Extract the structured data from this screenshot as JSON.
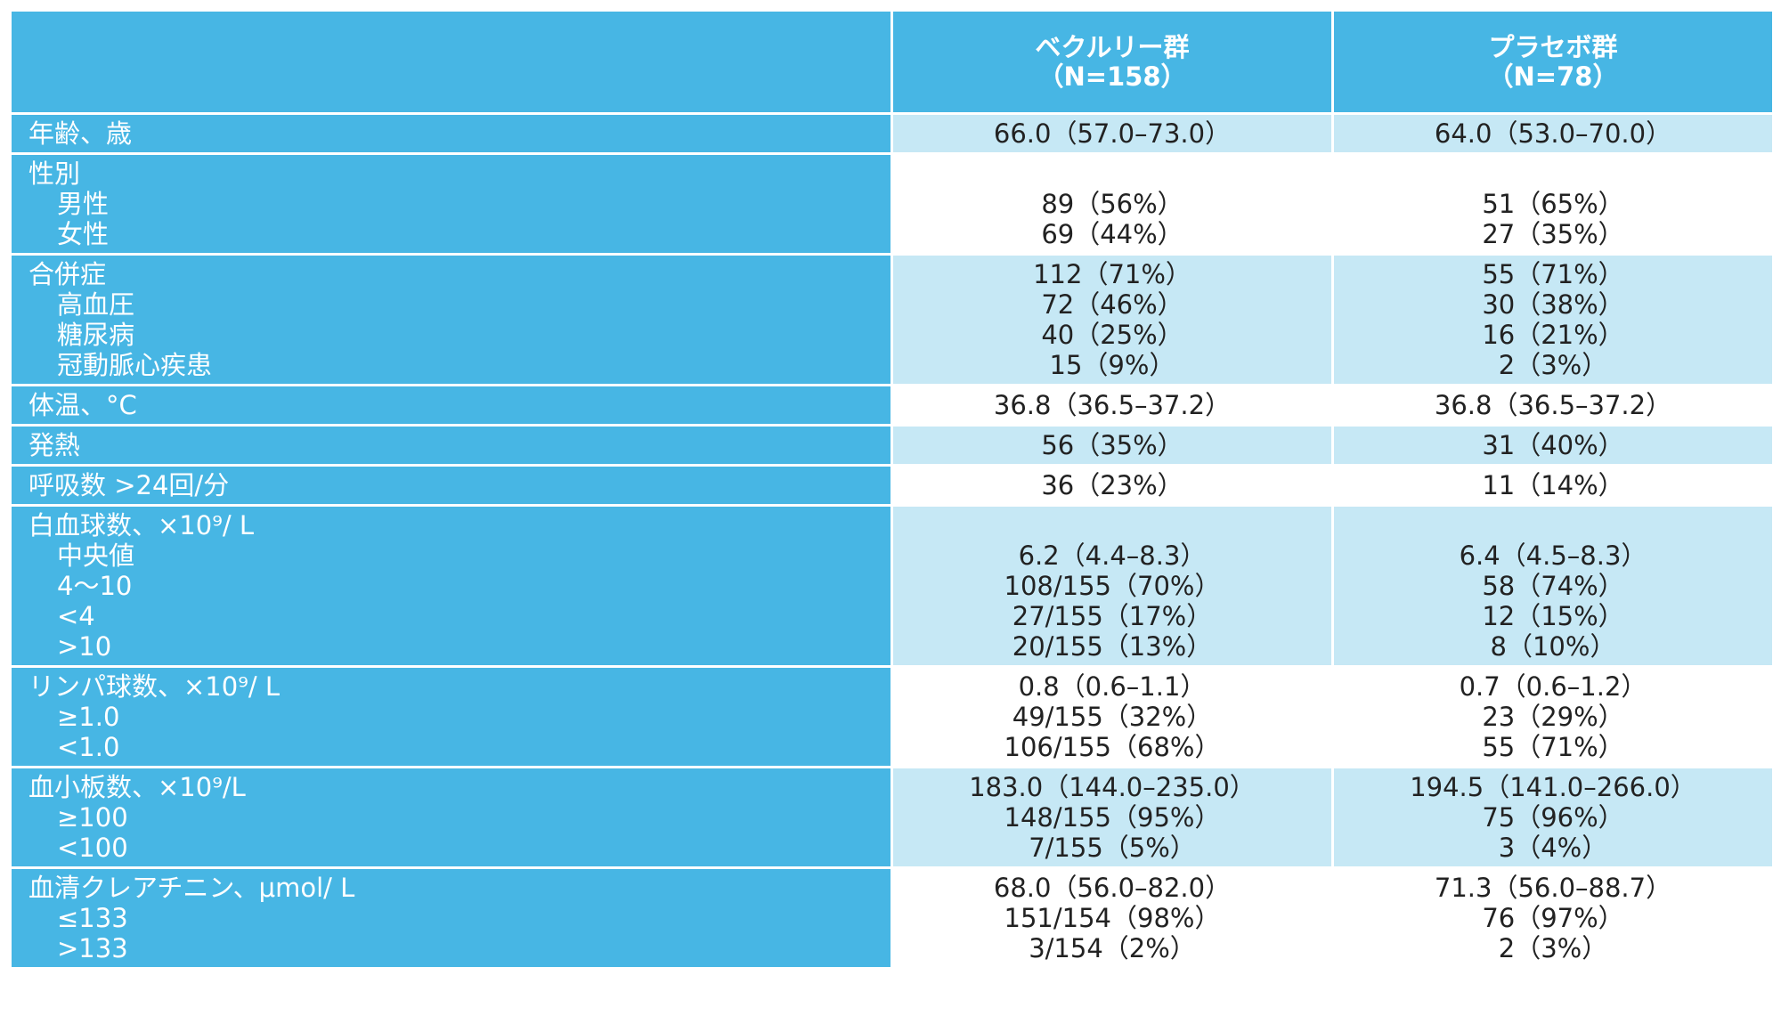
{
  "header": {
    "label": "",
    "group_a": {
      "name": "ベクルリー群",
      "n": "（N=158）"
    },
    "group_b": {
      "name": "プラセボ群",
      "n": "（N=78）"
    }
  },
  "rows": [
    {
      "shade": "light",
      "lines": [
        {
          "label": "年齢、歳",
          "indent": false,
          "a": "66.0（57.0–73.0）",
          "b": "64.0（53.0–70.0）"
        }
      ]
    },
    {
      "shade": "white",
      "lines": [
        {
          "label": "性別",
          "indent": false,
          "a": "",
          "b": ""
        },
        {
          "label": "男性",
          "indent": true,
          "a": "89（56%）",
          "b": "51（65%）"
        },
        {
          "label": "女性",
          "indent": true,
          "a": "69（44%）",
          "b": "27（35%）"
        }
      ]
    },
    {
      "shade": "light",
      "lines": [
        {
          "label": "合併症",
          "indent": false,
          "a": "112（71%）",
          "b": "55（71%）"
        },
        {
          "label": "高血圧",
          "indent": true,
          "a": "72（46%）",
          "b": "30（38%）"
        },
        {
          "label": "糖尿病",
          "indent": true,
          "a": "40（25%）",
          "b": "16（21%）"
        },
        {
          "label": "冠動脈心疾患",
          "indent": true,
          "a": "15（9%）",
          "b": "2（3%）"
        }
      ]
    },
    {
      "shade": "white",
      "lines": [
        {
          "label": "体温、°C",
          "indent": false,
          "a": "36.8（36.5–37.2）",
          "b": "36.8（36.5–37.2）"
        }
      ]
    },
    {
      "shade": "light",
      "lines": [
        {
          "label": "発熱",
          "indent": false,
          "a": "56（35%）",
          "b": "31（40%）"
        }
      ]
    },
    {
      "shade": "white",
      "lines": [
        {
          "label": "呼吸数 >24回/分",
          "indent": false,
          "a": "36（23%）",
          "b": "11（14%）"
        }
      ]
    },
    {
      "shade": "light",
      "lines": [
        {
          "label": "白血球数、×10⁹/ L",
          "indent": false,
          "a": "",
          "b": ""
        },
        {
          "label": "中央値",
          "indent": true,
          "a": "6.2（4.4–8.3）",
          "b": "6.4（4.5–8.3）"
        },
        {
          "label": "4～10",
          "indent": true,
          "a": "108/155（70%）",
          "b": "58（74%）"
        },
        {
          "label": "<4",
          "indent": true,
          "a": "27/155（17%）",
          "b": "12（15%）"
        },
        {
          "label": ">10",
          "indent": true,
          "a": "20/155（13%）",
          "b": "8（10%）"
        }
      ]
    },
    {
      "shade": "white",
      "lines": [
        {
          "label": "リンパ球数、×10⁹/ L",
          "indent": false,
          "a": "0.8（0.6–1.1）",
          "b": "0.7（0.6–1.2）"
        },
        {
          "label": "≥1.0",
          "indent": true,
          "a": "49/155（32%）",
          "b": "23（29%）"
        },
        {
          "label": "<1.0",
          "indent": true,
          "a": "106/155（68%）",
          "b": "55（71%）"
        }
      ]
    },
    {
      "shade": "light",
      "lines": [
        {
          "label": "血小板数、×10⁹/L",
          "indent": false,
          "a": "183.0（144.0–235.0）",
          "b": "194.5（141.0–266.0）"
        },
        {
          "label": "≥100",
          "indent": true,
          "a": "148/155（95%）",
          "b": "75（96%）"
        },
        {
          "label": "<100",
          "indent": true,
          "a": "7/155（5%）",
          "b": "3（4%）"
        }
      ]
    },
    {
      "shade": "white",
      "lines": [
        {
          "label": "血清クレアチニン、μmol/ L",
          "indent": false,
          "a": "68.0（56.0–82.0）",
          "b": "71.3（56.0–88.7）"
        },
        {
          "label": "≤133",
          "indent": true,
          "a": "151/154（98%）",
          "b": "76（97%）"
        },
        {
          "label": ">133",
          "indent": true,
          "a": "3/154（2%）",
          "b": "2（3%）"
        }
      ]
    }
  ],
  "colors": {
    "header_bg": "#47b6e4",
    "label_bg": "#47b6e4",
    "row_light": "#c6e8f5",
    "row_white": "#ffffff",
    "value_text": "#222222",
    "label_text": "#ffffff"
  }
}
